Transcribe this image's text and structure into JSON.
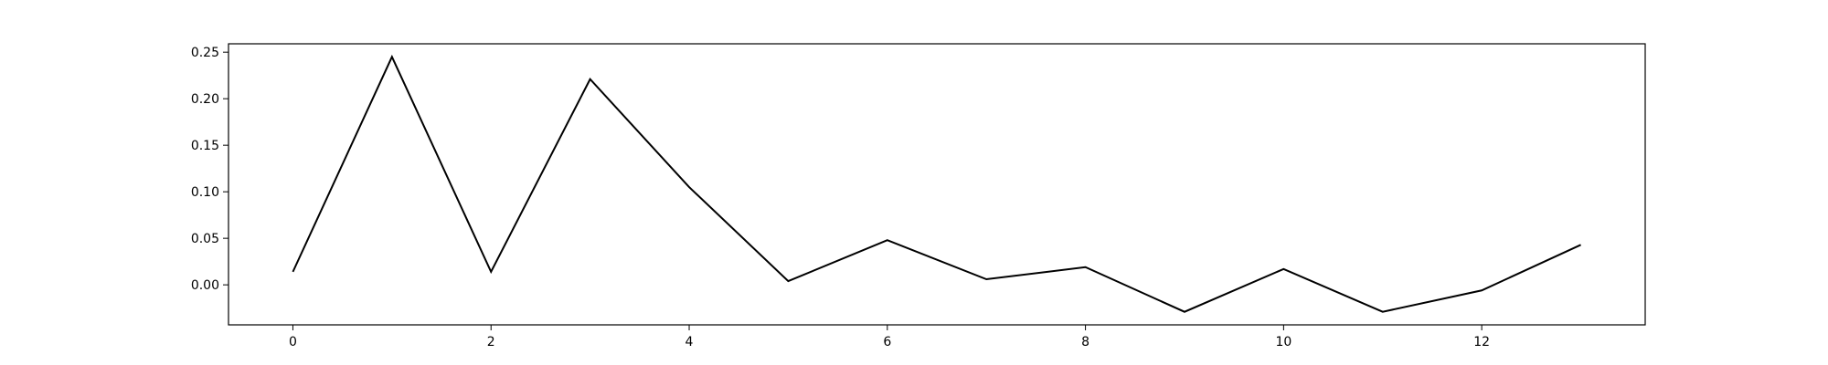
{
  "chart_data": {
    "type": "line",
    "title": "",
    "xlabel": "",
    "ylabel": "",
    "grid": false,
    "legend": "none",
    "xlim": [
      -0.65,
      13.65
    ],
    "ylim": [
      -0.043,
      0.259
    ],
    "x_ticks": [
      0,
      2,
      4,
      6,
      8,
      10,
      12
    ],
    "x_tick_labels": [
      "0",
      "2",
      "4",
      "6",
      "8",
      "10",
      "12"
    ],
    "y_ticks": [
      0.0,
      0.05,
      0.1,
      0.15,
      0.2,
      0.25
    ],
    "y_tick_labels": [
      "0.00",
      "0.05",
      "0.10",
      "0.15",
      "0.20",
      "0.25"
    ],
    "series": [
      {
        "color": "#000000",
        "x": [
          0,
          1,
          2,
          3,
          4,
          5,
          6,
          7,
          8,
          9,
          10,
          11,
          12,
          13
        ],
        "y": [
          0.014,
          0.245,
          0.014,
          0.221,
          0.105,
          0.004,
          0.048,
          0.006,
          0.019,
          -0.029,
          0.017,
          -0.029,
          -0.006,
          0.043
        ]
      }
    ]
  }
}
